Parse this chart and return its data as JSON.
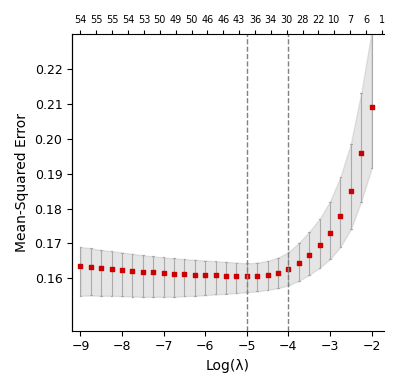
{
  "top_labels": [
    54,
    55,
    55,
    54,
    53,
    50,
    49,
    50,
    46,
    46,
    43,
    36,
    34,
    30,
    28,
    22,
    10,
    7,
    6,
    1
  ],
  "vline1_x": -5.0,
  "vline2_x": -4.0,
  "xlabel": "Log(λ)",
  "ylabel": "Mean-Squared Error",
  "xlim": [
    -9.2,
    -1.7
  ],
  "ylim": [
    0.145,
    0.23
  ],
  "yticks": [
    0.16,
    0.17,
    0.18,
    0.19,
    0.2,
    0.21,
    0.22
  ],
  "xticks": [
    -9,
    -8,
    -7,
    -6,
    -5,
    -4,
    -3,
    -2
  ],
  "dot_color": "#cc0000",
  "error_color": "#aaaaaa",
  "background": "#ffffff",
  "log_lambda": [
    -9.0,
    -8.75,
    -8.5,
    -8.25,
    -8.0,
    -7.75,
    -7.5,
    -7.25,
    -7.0,
    -6.75,
    -6.5,
    -6.25,
    -6.0,
    -5.75,
    -5.5,
    -5.25,
    -5.0,
    -4.75,
    -4.5,
    -4.25,
    -4.0,
    -3.75,
    -3.5,
    -3.25,
    -3.0,
    -2.75,
    -2.5,
    -2.25,
    -2.0
  ],
  "mse": [
    0.1635,
    0.1633,
    0.163,
    0.1628,
    0.1625,
    0.1622,
    0.1619,
    0.1617,
    0.1615,
    0.1613,
    0.1612,
    0.1611,
    0.161,
    0.1609,
    0.1608,
    0.1607,
    0.1606,
    0.1607,
    0.161,
    0.1616,
    0.1627,
    0.1645,
    0.1668,
    0.1695,
    0.173,
    0.178,
    0.185,
    0.196,
    0.209
  ],
  "se_upper": [
    0.0055,
    0.0053,
    0.0051,
    0.005,
    0.0049,
    0.0048,
    0.0047,
    0.0046,
    0.0045,
    0.0044,
    0.0043,
    0.0042,
    0.0041,
    0.004,
    0.0039,
    0.0038,
    0.0037,
    0.0038,
    0.004,
    0.0043,
    0.0048,
    0.0056,
    0.0065,
    0.0075,
    0.009,
    0.011,
    0.0135,
    0.017,
    0.0215
  ],
  "se_lower": [
    0.0085,
    0.0082,
    0.008,
    0.0078,
    0.0076,
    0.0074,
    0.0072,
    0.007,
    0.0068,
    0.0066,
    0.0063,
    0.0061,
    0.0058,
    0.0055,
    0.0052,
    0.0049,
    0.0046,
    0.0044,
    0.0043,
    0.0044,
    0.0047,
    0.0052,
    0.0058,
    0.0065,
    0.0075,
    0.009,
    0.011,
    0.014,
    0.0175
  ]
}
